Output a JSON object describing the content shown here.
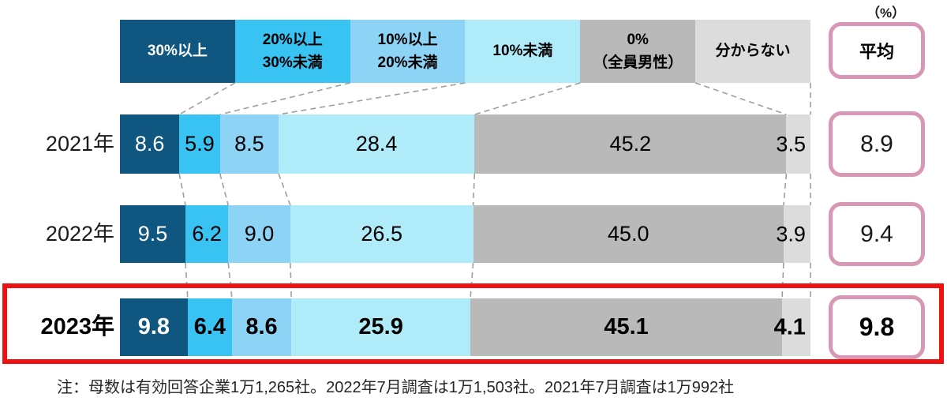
{
  "unit_label": "（%）",
  "average_header": "平均",
  "note": "注：母数は有効回答企業1万1,265社。2022年7月調査は1万1,503社。2021年7月調査は1万992社",
  "chart_data": {
    "type": "bar",
    "orientation": "horizontal",
    "stacked": true,
    "value_unit": "%",
    "legend_position": "top",
    "categories": [
      "30%以上",
      "20%以上30%未満",
      "10%以上20%未満",
      "10%未満",
      "0%（全員男性）",
      "分からない"
    ],
    "category_lines": [
      [
        "30%以上"
      ],
      [
        "20%以上",
        "30%未満"
      ],
      [
        "10%以上",
        "20%未満"
      ],
      [
        "10%未満"
      ],
      [
        "0%",
        "（全員男性）"
      ],
      [
        "分からない"
      ]
    ],
    "colors": [
      "#0f5681",
      "#38c3f3",
      "#8dd3f5",
      "#b0ebf9",
      "#b9b9b9",
      "#dcdcdc"
    ],
    "text_colors": [
      "#ffffff",
      "#000000",
      "#000000",
      "#000000",
      "#000000",
      "#000000"
    ],
    "rows": [
      {
        "label": "2021年",
        "values": [
          8.6,
          5.9,
          8.5,
          28.4,
          45.2,
          3.5
        ],
        "value_labels": [
          "8.6",
          "5.9",
          "8.5",
          "28.4",
          "45.2",
          "3.5"
        ],
        "average": 8.9,
        "average_label": "8.9",
        "highlight": false
      },
      {
        "label": "2022年",
        "values": [
          9.5,
          6.2,
          9.0,
          26.5,
          45.0,
          3.9
        ],
        "value_labels": [
          "9.5",
          "6.2",
          "9.0",
          "26.5",
          "45.0",
          "3.9"
        ],
        "average": 9.4,
        "average_label": "9.4",
        "highlight": false
      },
      {
        "label": "2023年",
        "values": [
          9.8,
          6.4,
          8.6,
          25.9,
          45.1,
          4.1
        ],
        "value_labels": [
          "9.8",
          "6.4",
          "8.6",
          "25.9",
          "45.1",
          "4.1"
        ],
        "average": 9.8,
        "average_label": "9.8",
        "highlight": true
      }
    ],
    "accent": {
      "average_box_border": "#d897b5",
      "highlight_border": "#ee1111",
      "connector": "#9e9e9e"
    }
  }
}
